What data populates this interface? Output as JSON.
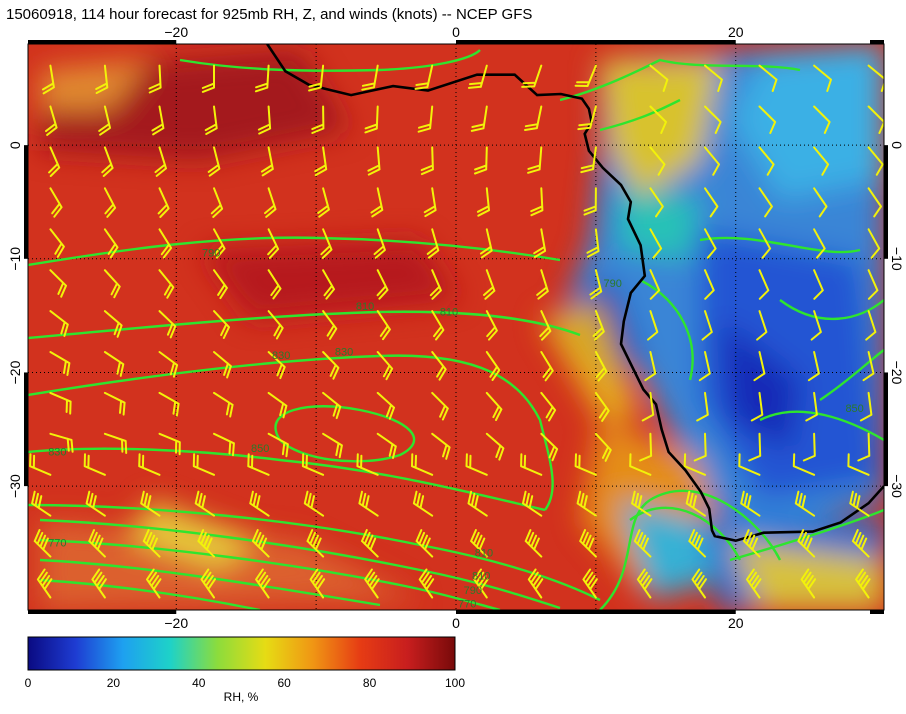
{
  "title": "15060918, 114 hour forecast for 925mb RH, Z, and winds (knots) -- NCEP GFS",
  "map": {
    "lon_ticks": [
      {
        "value": -20,
        "label": "−20"
      },
      {
        "value": 0,
        "label": "0"
      },
      {
        "value": 20,
        "label": "20"
      }
    ],
    "lat_ticks": [
      {
        "value": 0,
        "label": "0"
      },
      {
        "value": -10,
        "label": "−10"
      },
      {
        "value": -20,
        "label": "−20"
      },
      {
        "value": -30,
        "label": "−30"
      }
    ],
    "contour_labels": [
      {
        "text": "790",
        "lon": -17.5,
        "lat": -9.8
      },
      {
        "text": "810",
        "lon": -6.5,
        "lat": -14.5
      },
      {
        "text": "810",
        "lon": -0.5,
        "lat": -15.0
      },
      {
        "text": "830",
        "lon": -12.5,
        "lat": -18.8
      },
      {
        "text": "830",
        "lon": -8.0,
        "lat": -18.5
      },
      {
        "text": "850",
        "lon": -14.0,
        "lat": -27.0
      },
      {
        "text": "830",
        "lon": -28.5,
        "lat": -27.3
      },
      {
        "text": "790",
        "lon": 11.2,
        "lat": -12.5
      },
      {
        "text": "770",
        "lon": -28.5,
        "lat": -35.3
      },
      {
        "text": "810",
        "lon": 2.0,
        "lat": -36.2
      },
      {
        "text": "810",
        "lon": 1.8,
        "lat": -38.2
      },
      {
        "text": "790",
        "lon": 1.2,
        "lat": -39.5
      },
      {
        "text": "770",
        "lon": 0.8,
        "lat": -40.7
      },
      {
        "text": "850",
        "lon": 28.5,
        "lat": -23.5
      }
    ],
    "colors": {
      "coastline": "#000000",
      "contour": "#2ee52e",
      "barb": "#f2f20a",
      "grid": "#000000"
    }
  },
  "colorbar": {
    "title": "RH, %",
    "labels": [
      "0",
      "20",
      "40",
      "60",
      "80",
      "100"
    ],
    "colors": [
      "#0a0a82",
      "#1e3cd2",
      "#1ea0f0",
      "#1ed2c8",
      "#8cdc3c",
      "#e6dc14",
      "#f09614",
      "#e63c14",
      "#c81e1e",
      "#780a0a"
    ]
  }
}
